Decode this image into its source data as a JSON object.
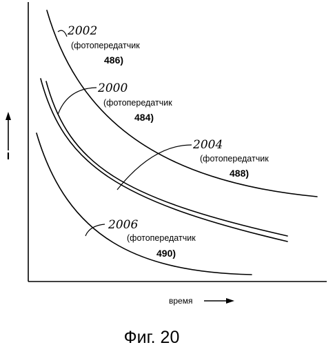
{
  "axes": {
    "y_label": "I",
    "x_label": "время"
  },
  "curves": [
    {
      "ref": "2002",
      "label": "(фотопередатчик",
      "number": "486)"
    },
    {
      "ref": "2000",
      "label": "(фотопередатчик",
      "number": "484)"
    },
    {
      "ref": "2004",
      "label": "(фотопередатчик",
      "number": "488)"
    },
    {
      "ref": "2006",
      "label": "(фотопередатчик",
      "number": "490)"
    }
  ],
  "caption": "Фиг. 20"
}
